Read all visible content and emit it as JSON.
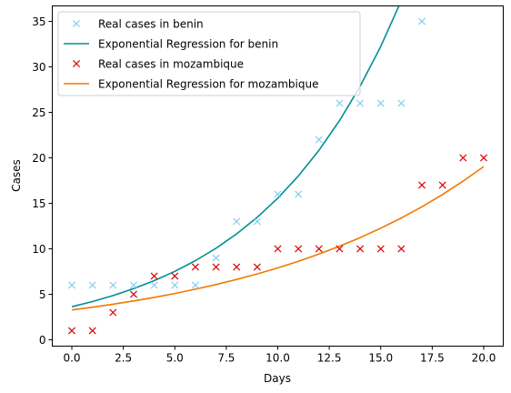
{
  "chart_data": {
    "type": "scatter",
    "title": "",
    "xlabel": "Days",
    "ylabel": "Cases",
    "xlim": [
      -0.95,
      20.95
    ],
    "ylim": [
      -0.7,
      36.7
    ],
    "x_ticks": [
      0.0,
      2.5,
      5.0,
      7.5,
      10.0,
      12.5,
      15.0,
      17.5,
      20.0
    ],
    "x_tick_labels": [
      "0.0",
      "2.5",
      "5.0",
      "7.5",
      "10.0",
      "12.5",
      "15.0",
      "17.5",
      "20.0"
    ],
    "y_ticks": [
      0,
      5,
      10,
      15,
      20,
      25,
      30,
      35
    ],
    "y_tick_labels": [
      "0",
      "5",
      "10",
      "15",
      "20",
      "25",
      "30",
      "35"
    ],
    "grid": false,
    "legend_position": "top-left",
    "series": [
      {
        "name": "Real cases in benin",
        "kind": "scatter",
        "marker": "x",
        "color": "#87ceeb",
        "x": [
          0,
          1,
          2,
          3,
          4,
          5,
          6,
          7,
          8,
          9,
          10,
          11,
          12,
          13,
          14,
          15,
          16,
          17
        ],
        "y": [
          6,
          6,
          6,
          6,
          6,
          6,
          6,
          9,
          13,
          13,
          16,
          16,
          22,
          26,
          26,
          26,
          26,
          35
        ]
      },
      {
        "name": "Exponential Regression for benin",
        "kind": "line",
        "color": "#009090",
        "x": [
          0,
          1,
          2,
          3,
          4,
          5,
          6,
          7,
          8,
          9,
          10,
          11,
          12,
          13,
          14,
          15,
          16,
          17
        ],
        "y": [
          3.63,
          4.2,
          4.86,
          5.62,
          6.5,
          7.52,
          8.7,
          10.06,
          11.64,
          13.46,
          15.57,
          18.01,
          20.83,
          24.1,
          27.87,
          32.24,
          37.29,
          43.14
        ]
      },
      {
        "name": "Real cases in mozambique",
        "kind": "scatter",
        "marker": "x",
        "color": "#dd0000",
        "x": [
          0,
          1,
          2,
          3,
          4,
          5,
          6,
          7,
          8,
          9,
          10,
          11,
          12,
          13,
          14,
          15,
          16,
          17,
          18,
          19,
          20
        ],
        "y": [
          1,
          1,
          3,
          5,
          7,
          7,
          8,
          8,
          8,
          8,
          10,
          10,
          10,
          10,
          10,
          10,
          10,
          17,
          17,
          20,
          20
        ]
      },
      {
        "name": "Exponential Regression for mozambique",
        "kind": "line",
        "color": "#f07800",
        "x": [
          0,
          1,
          2,
          3,
          4,
          5,
          6,
          7,
          8,
          9,
          10,
          11,
          12,
          13,
          14,
          15,
          16,
          17,
          18,
          19,
          20
        ],
        "y": [
          3.28,
          3.58,
          3.91,
          4.27,
          4.66,
          5.09,
          5.56,
          6.07,
          6.63,
          7.24,
          7.9,
          8.63,
          9.42,
          10.29,
          11.23,
          12.27,
          13.39,
          14.62,
          15.97,
          17.44,
          19.04
        ]
      }
    ]
  }
}
